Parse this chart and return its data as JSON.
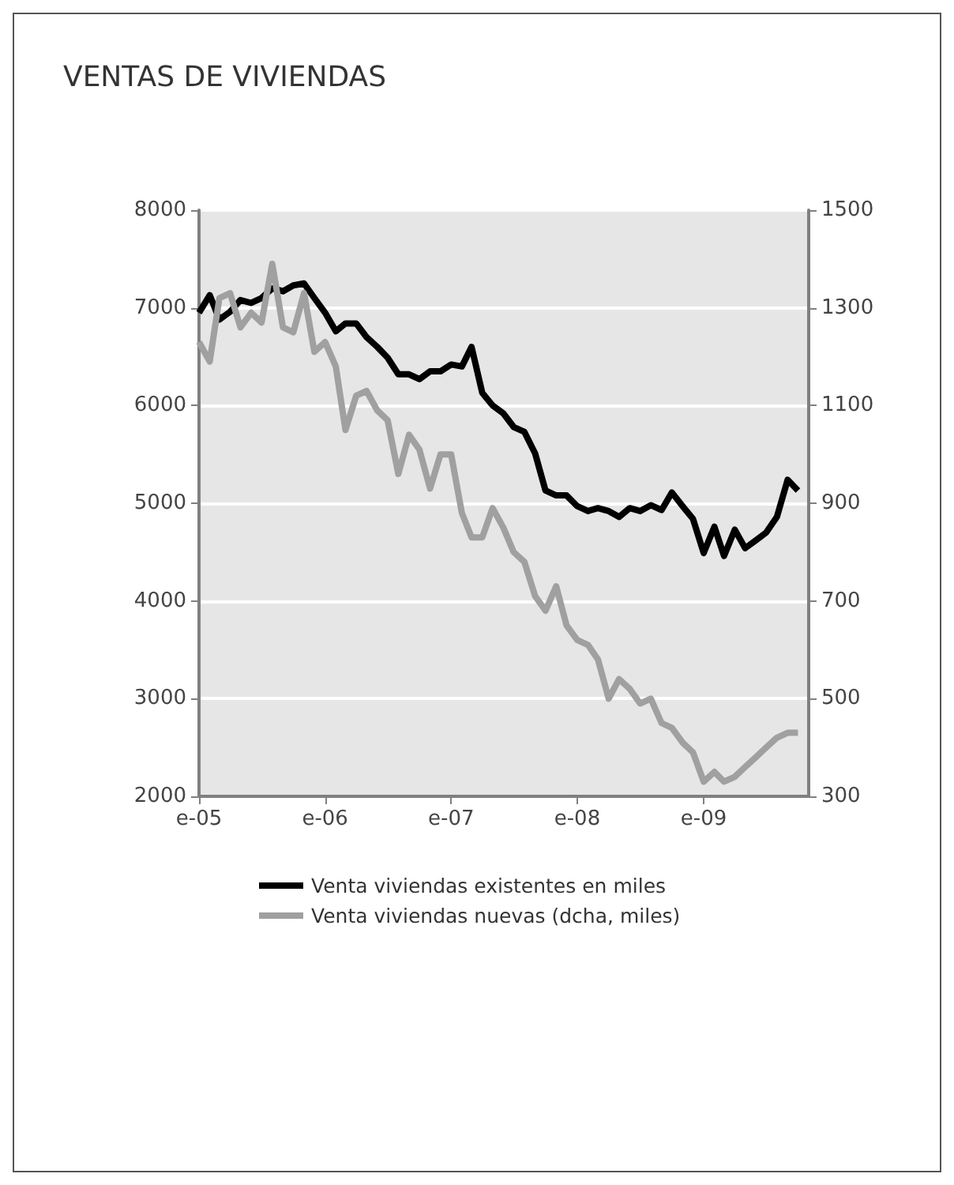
{
  "chart_data": {
    "type": "line",
    "title": "VENTAS DE VIVIENDAS",
    "x": [
      "2005-01",
      "2005-02",
      "2005-03",
      "2005-04",
      "2005-05",
      "2005-06",
      "2005-07",
      "2005-08",
      "2005-09",
      "2005-10",
      "2005-11",
      "2005-12",
      "2006-01",
      "2006-02",
      "2006-03",
      "2006-04",
      "2006-05",
      "2006-06",
      "2006-07",
      "2006-08",
      "2006-09",
      "2006-10",
      "2006-11",
      "2006-12",
      "2007-01",
      "2007-02",
      "2007-03",
      "2007-04",
      "2007-05",
      "2007-06",
      "2007-07",
      "2007-08",
      "2007-09",
      "2007-10",
      "2007-11",
      "2007-12",
      "2008-01",
      "2008-02",
      "2008-03",
      "2008-04",
      "2008-05",
      "2008-06",
      "2008-07",
      "2008-08",
      "2008-09",
      "2008-10",
      "2008-11",
      "2008-12",
      "2009-01",
      "2009-02",
      "2009-03",
      "2009-04",
      "2009-05",
      "2009-06",
      "2009-07",
      "2009-08",
      "2009-09",
      "2009-10"
    ],
    "series": [
      {
        "name": "Venta viviendas existentes en miles",
        "color": "#000000",
        "values": [
          6950,
          7130,
          6880,
          6960,
          7080,
          7050,
          7100,
          7200,
          7170,
          7230,
          7250,
          7100,
          6950,
          6760,
          6840,
          6840,
          6700,
          6600,
          6490,
          6320,
          6320,
          6270,
          6350,
          6350,
          6420,
          6400,
          6600,
          6130,
          6000,
          5920,
          5780,
          5730,
          5510,
          5130,
          5080,
          5080,
          4970,
          4920,
          4950,
          4920,
          4860,
          4950,
          4920,
          4980,
          4930,
          5110,
          4970,
          4840,
          4490,
          4760,
          4460,
          4730,
          4540,
          4620,
          4700,
          4860,
          5240,
          5130
        ]
      },
      {
        "name": "Venta viviendas nuevas (dcha, miles)",
        "color": "#a0a0a0",
        "axis": "y2",
        "values": [
          1230,
          1190,
          1320,
          1330,
          1260,
          1290,
          1270,
          1390,
          1260,
          1250,
          1330,
          1210,
          1230,
          1180,
          1050,
          1120,
          1130,
          1090,
          1070,
          960,
          1040,
          1010,
          930,
          1000,
          1000,
          880,
          830,
          830,
          890,
          850,
          800,
          780,
          710,
          680,
          730,
          650,
          620,
          610,
          580,
          500,
          540,
          520,
          490,
          500,
          450,
          440,
          410,
          390,
          330,
          350,
          330,
          340,
          360,
          380,
          400,
          420,
          430,
          430
        ]
      }
    ],
    "xlim": [
      "2005-01",
      "2009-11"
    ],
    "xticks": [
      {
        "value": "2005-01",
        "label": "e-05"
      },
      {
        "value": "2006-01",
        "label": "e-06"
      },
      {
        "value": "2007-01",
        "label": "e-07"
      },
      {
        "value": "2008-01",
        "label": "e-08"
      },
      {
        "value": "2009-01",
        "label": "e-09"
      }
    ],
    "ylim": [
      2000,
      8000
    ],
    "yticks": [
      2000,
      3000,
      4000,
      5000,
      6000,
      7000,
      8000
    ],
    "y2lim": [
      300,
      1500
    ],
    "y2ticks": [
      300,
      500,
      700,
      900,
      1100,
      1300,
      1500
    ],
    "grid": "y",
    "legend": "bottom",
    "marker": "none",
    "line_style": "solid"
  }
}
